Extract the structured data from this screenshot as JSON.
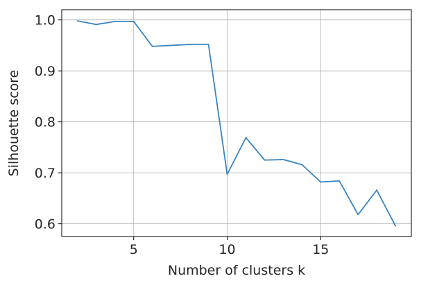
{
  "chart_data": {
    "type": "line",
    "title": "",
    "xlabel": "Number of clusters k",
    "ylabel": "Silhouette score",
    "xlim": [
      1.15,
      19.85
    ],
    "ylim": [
      0.575,
      1.02
    ],
    "x_ticks": [
      5,
      10,
      15
    ],
    "y_ticks": [
      0.6,
      0.7,
      0.8,
      0.9,
      1.0
    ],
    "x_tick_labels": [
      "5",
      "10",
      "15"
    ],
    "y_tick_labels": [
      "0.6",
      "0.7",
      "0.8",
      "0.9",
      "1.0"
    ],
    "grid": true,
    "legend": "none",
    "series": [
      {
        "color": "#3a85c1",
        "x": [
          2,
          3,
          4,
          5,
          6,
          7,
          8,
          9,
          10,
          11,
          12,
          13,
          14,
          15,
          16,
          17,
          18,
          19
        ],
        "y": [
          0.998,
          0.991,
          0.997,
          0.997,
          0.948,
          0.95,
          0.952,
          0.952,
          0.697,
          0.769,
          0.725,
          0.726,
          0.716,
          0.682,
          0.684,
          0.618,
          0.666,
          0.596
        ]
      }
    ]
  }
}
